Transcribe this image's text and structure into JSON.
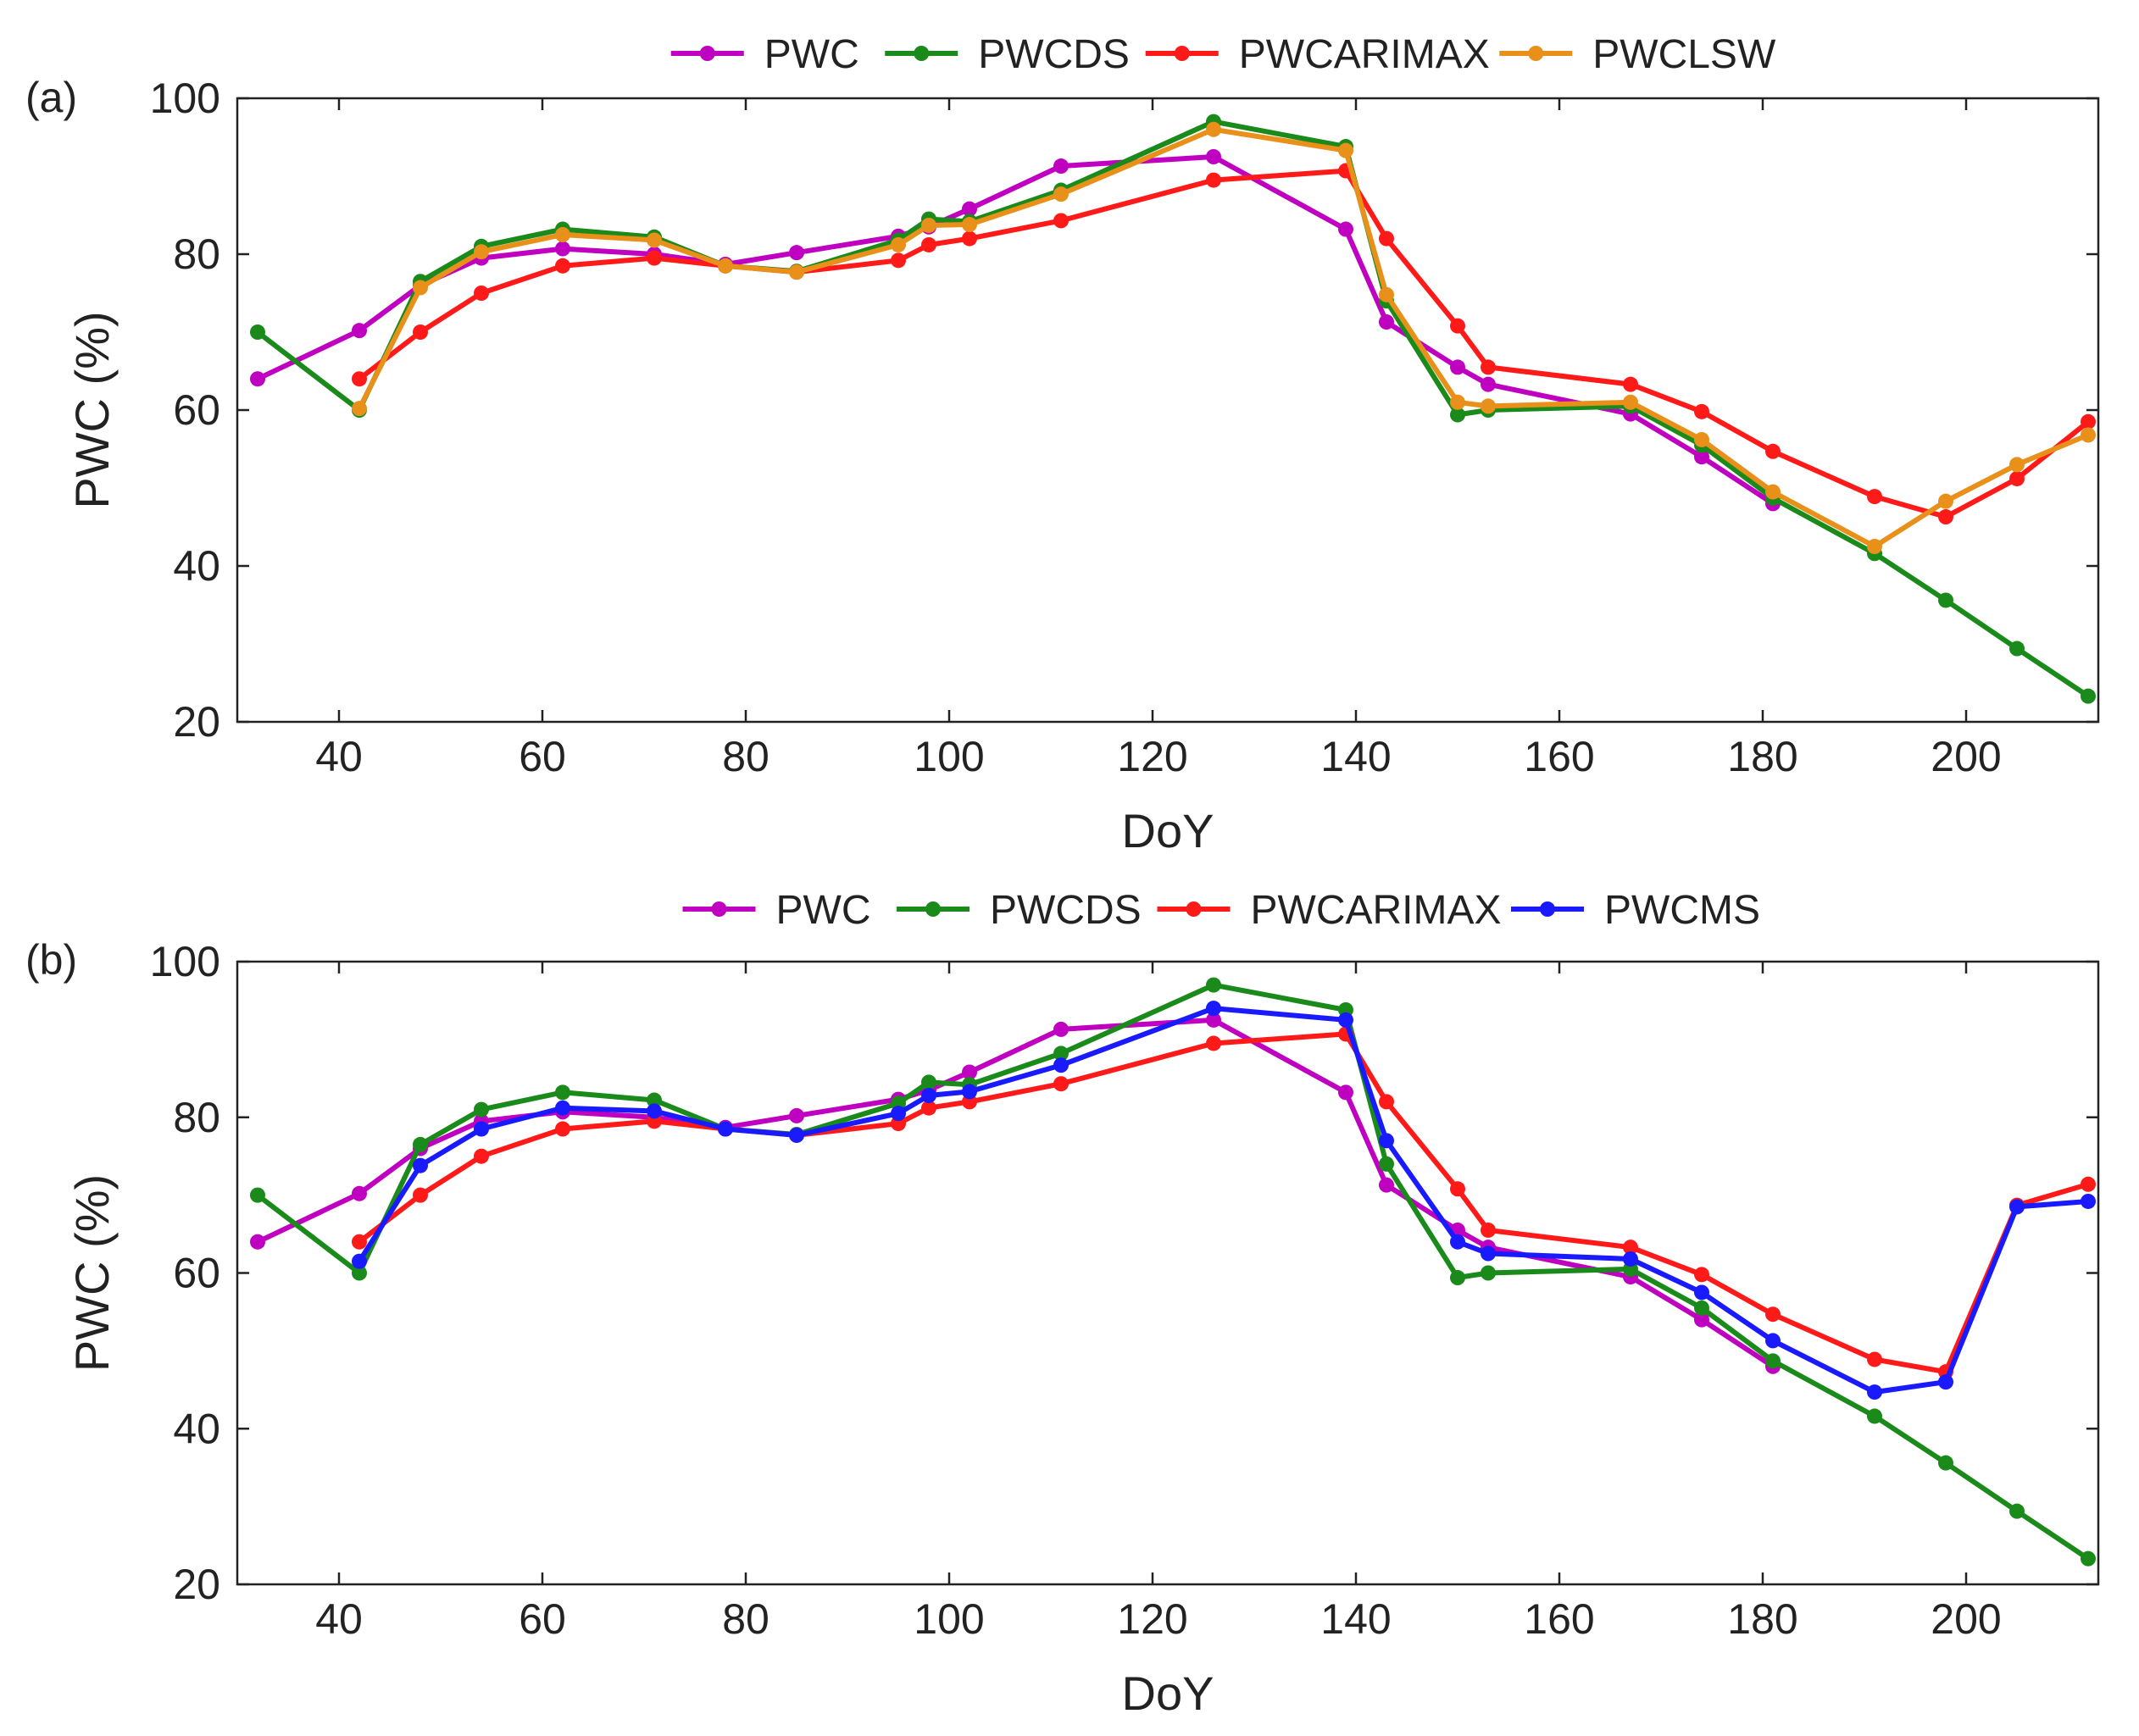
{
  "chart_data": [
    {
      "type": "line",
      "panel_label": "(a)",
      "xlabel": "DoY",
      "ylabel": "PWC (%)",
      "xlim": [
        30,
        213
      ],
      "ylim": [
        20,
        100
      ],
      "xticks": [
        40,
        60,
        80,
        100,
        120,
        140,
        160,
        180,
        200
      ],
      "yticks": [
        20,
        40,
        60,
        80,
        100
      ],
      "legend_position": "top-center",
      "series": [
        {
          "name": "PWC",
          "color": "#c000c0",
          "x": [
            32,
            42,
            48,
            54,
            62,
            71,
            78,
            85,
            95,
            98,
            102,
            111,
            126,
            139,
            143,
            150,
            153,
            167,
            174,
            181
          ],
          "y": [
            64,
            70.2,
            76,
            79.5,
            80.7,
            80,
            78.7,
            80.2,
            82.3,
            83.5,
            85.8,
            91.3,
            92.5,
            83.2,
            71.3,
            65.5,
            63.3,
            59.5,
            54,
            48
          ]
        },
        {
          "name": "PWCDS",
          "color": "#1a8a1a",
          "x": [
            32,
            42,
            48,
            54,
            62,
            71,
            78,
            85,
            95,
            98,
            102,
            111,
            126,
            139,
            143,
            150,
            153,
            167,
            174,
            181,
            191,
            198,
            205,
            212
          ],
          "y": [
            70,
            60,
            76.5,
            81,
            83.2,
            82.2,
            78.5,
            77.8,
            81.8,
            84.5,
            84.2,
            88.2,
            97,
            93.8,
            74,
            59.4,
            60,
            60.5,
            55.5,
            48.7,
            41.6,
            35.6,
            29.4,
            23.3
          ]
        },
        {
          "name": "PWCARIMAX",
          "color": "#ff1a1a",
          "x": [
            42,
            48,
            54,
            62,
            71,
            78,
            85,
            95,
            98,
            102,
            111,
            126,
            139,
            143,
            150,
            153,
            167,
            174,
            181,
            191,
            198,
            205,
            212
          ],
          "y": [
            64,
            70,
            75,
            78.5,
            79.5,
            78.5,
            77.7,
            79.2,
            81.2,
            82,
            84.3,
            89.5,
            90.7,
            82,
            70.8,
            65.5,
            63.3,
            59.8,
            54.7,
            48.9,
            46.3,
            51.2,
            58.5
          ]
        },
        {
          "name": "PWCLSW",
          "color": "#e8901a",
          "x": [
            42,
            48,
            54,
            62,
            71,
            78,
            85,
            95,
            98,
            102,
            111,
            126,
            139,
            143,
            150,
            153,
            167,
            174,
            181,
            191,
            198,
            205,
            212
          ],
          "y": [
            60.2,
            75.7,
            80.3,
            82.5,
            81.8,
            78.5,
            77.7,
            81.2,
            83.7,
            83.8,
            87.7,
            96,
            93.3,
            74.8,
            61,
            60.5,
            61,
            56.2,
            49.5,
            42.5,
            48.3,
            53,
            56.8
          ]
        }
      ]
    },
    {
      "type": "line",
      "panel_label": "(b)",
      "xlabel": "DoY",
      "ylabel": "PWC (%)",
      "xlim": [
        30,
        213
      ],
      "ylim": [
        20,
        100
      ],
      "xticks": [
        40,
        60,
        80,
        100,
        120,
        140,
        160,
        180,
        200
      ],
      "yticks": [
        20,
        40,
        60,
        80,
        100
      ],
      "legend_position": "top-center",
      "series": [
        {
          "name": "PWC",
          "color": "#c000c0",
          "x": [
            32,
            42,
            48,
            54,
            62,
            71,
            78,
            85,
            95,
            98,
            102,
            111,
            126,
            139,
            143,
            150,
            153,
            167,
            174,
            181
          ],
          "y": [
            64,
            70.2,
            76,
            79.5,
            80.7,
            80,
            78.7,
            80.2,
            82.3,
            83.5,
            85.8,
            91.3,
            92.5,
            83.2,
            71.3,
            65.5,
            63.3,
            59.5,
            54,
            48
          ]
        },
        {
          "name": "PWCDS",
          "color": "#1a8a1a",
          "x": [
            32,
            42,
            48,
            54,
            62,
            71,
            78,
            85,
            95,
            98,
            102,
            111,
            126,
            139,
            143,
            150,
            153,
            167,
            174,
            181,
            191,
            198,
            205,
            212
          ],
          "y": [
            70,
            60,
            76.5,
            81,
            83.2,
            82.2,
            78.5,
            77.8,
            81.8,
            84.5,
            84.2,
            88.2,
            97,
            93.8,
            74,
            59.4,
            60,
            60.5,
            55.5,
            48.7,
            41.6,
            35.6,
            29.4,
            23.3
          ]
        },
        {
          "name": "PWCARIMAX",
          "color": "#ff1a1a",
          "x": [
            42,
            48,
            54,
            62,
            71,
            78,
            85,
            95,
            98,
            102,
            111,
            126,
            139,
            143,
            150,
            153,
            167,
            174,
            181,
            191,
            198,
            205,
            212
          ],
          "y": [
            64,
            70,
            75,
            78.5,
            79.5,
            78.5,
            77.7,
            79.2,
            81.2,
            82,
            84.3,
            89.5,
            90.7,
            82,
            70.8,
            65.5,
            63.3,
            59.8,
            54.7,
            48.9,
            47.3,
            68.7,
            71.4
          ]
        },
        {
          "name": "PWCMS",
          "color": "#1a1aff",
          "x": [
            42,
            48,
            54,
            62,
            71,
            78,
            85,
            95,
            98,
            102,
            111,
            126,
            139,
            143,
            150,
            153,
            167,
            174,
            181,
            191,
            198,
            205,
            212
          ],
          "y": [
            61.5,
            73.8,
            78.5,
            81.2,
            80.8,
            78.5,
            77.7,
            80.5,
            82.8,
            83.3,
            86.7,
            94,
            92.5,
            77,
            64,
            62.5,
            61.8,
            57.5,
            51.3,
            44.7,
            46,
            68.5,
            69.2
          ]
        }
      ]
    }
  ]
}
